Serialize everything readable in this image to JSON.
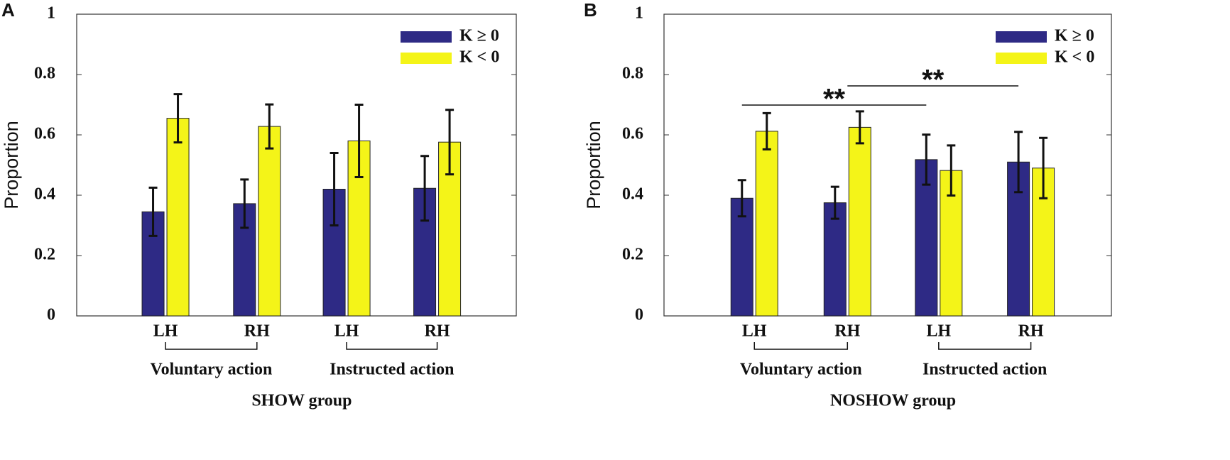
{
  "chart_data": [
    {
      "type": "bar",
      "panel": "A",
      "ylabel": "Proportion",
      "xlabel": "SHOW group",
      "categories": [
        "LH",
        "RH",
        "LH",
        "RH"
      ],
      "groups": [
        "Voluntary action",
        "Instructed action"
      ],
      "ylim": [
        0,
        1
      ],
      "yticks": [
        0,
        0.2,
        0.4,
        0.6,
        0.8,
        1
      ],
      "legend": "upper right",
      "series": [
        {
          "name": "K ≥ 0",
          "color": "#2e2a85",
          "values": [
            0.345,
            0.372,
            0.42,
            0.423
          ],
          "errors": [
            0.08,
            0.08,
            0.12,
            0.107
          ]
        },
        {
          "name": "K < 0",
          "color": "#f4f418",
          "values": [
            0.655,
            0.628,
            0.58,
            0.576
          ],
          "errors": [
            0.08,
            0.073,
            0.12,
            0.107
          ]
        }
      ]
    },
    {
      "type": "bar",
      "panel": "B",
      "ylabel": "Proportion",
      "xlabel": "NOSHOW group",
      "categories": [
        "LH",
        "RH",
        "LH",
        "RH"
      ],
      "groups": [
        "Voluntary action",
        "Instructed action"
      ],
      "ylim": [
        0,
        1
      ],
      "yticks": [
        0,
        0.2,
        0.4,
        0.6,
        0.8,
        1
      ],
      "legend": "upper right",
      "series": [
        {
          "name": "K ≥ 0",
          "color": "#2e2a85",
          "values": [
            0.39,
            0.375,
            0.518,
            0.51
          ],
          "errors": [
            0.06,
            0.053,
            0.083,
            0.1
          ]
        },
        {
          "name": "K < 0",
          "color": "#f4f418",
          "values": [
            0.612,
            0.625,
            0.482,
            0.49
          ],
          "errors": [
            0.06,
            0.053,
            0.083,
            0.1
          ]
        }
      ],
      "annotations": [
        "**",
        "**"
      ]
    }
  ]
}
